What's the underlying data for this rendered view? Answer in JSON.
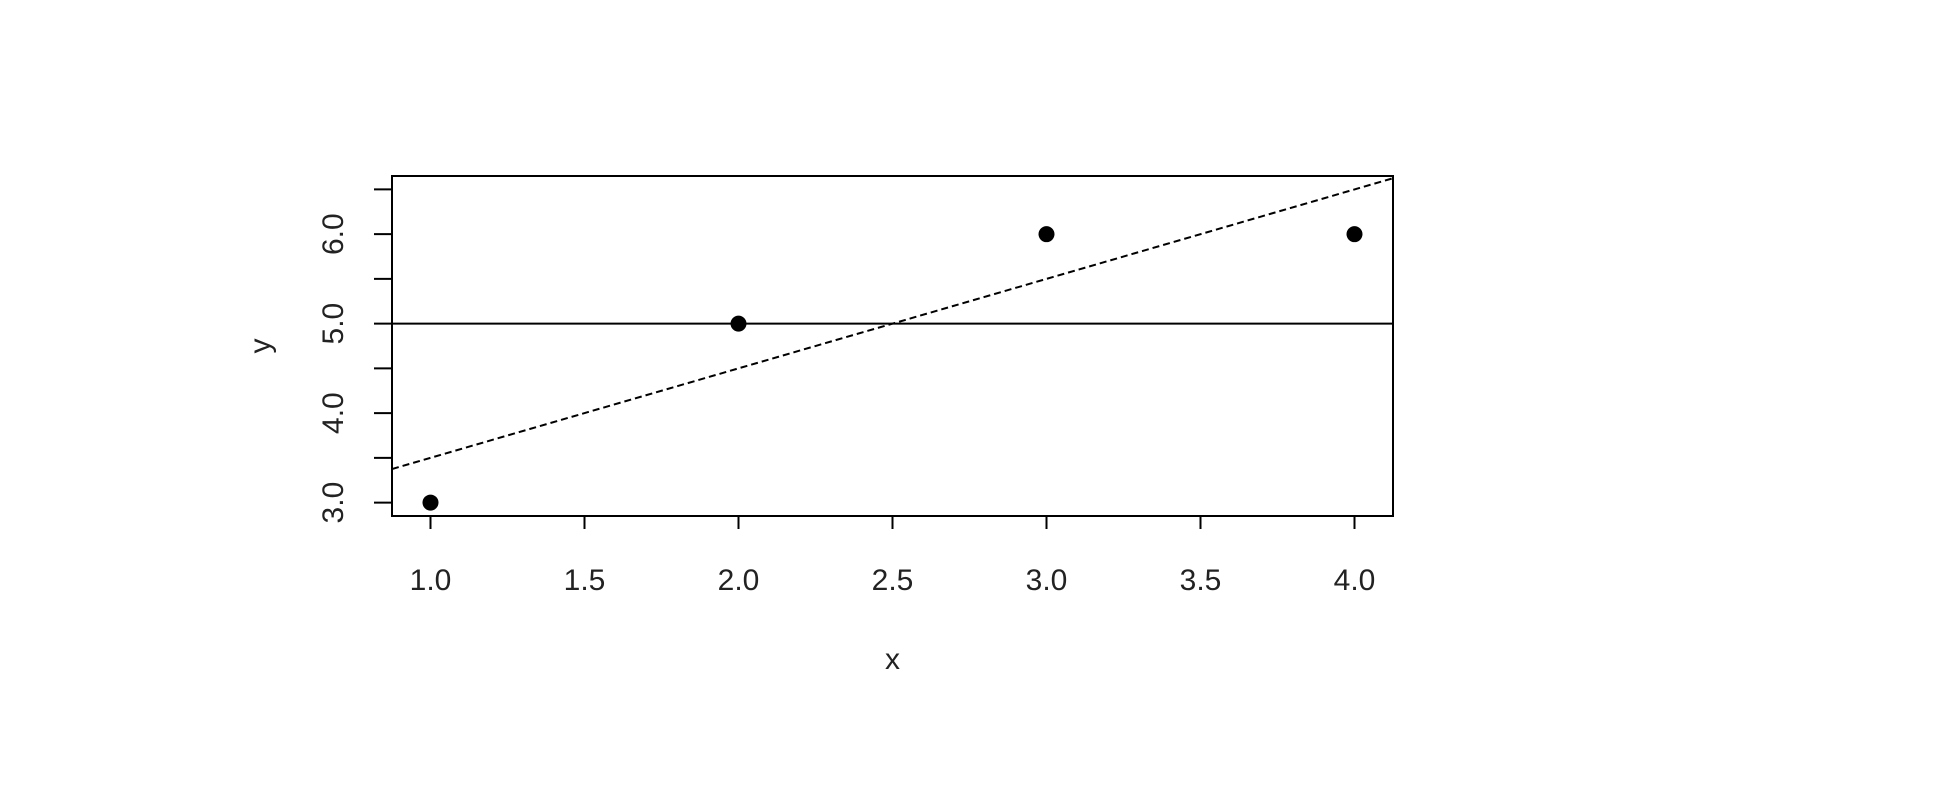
{
  "chart_data": {
    "type": "scatter",
    "title": "",
    "xlabel": "x",
    "ylabel": "y",
    "xlim": [
      0.875,
      4.125
    ],
    "ylim": [
      2.85,
      6.65
    ],
    "x_ticks": [
      1.0,
      1.5,
      2.0,
      2.5,
      3.0,
      3.5,
      4.0
    ],
    "x_tick_labels": [
      "1.0",
      "1.5",
      "2.0",
      "2.5",
      "3.0",
      "3.5",
      "4.0"
    ],
    "y_ticks_major": [
      3.0,
      4.0,
      5.0,
      6.0
    ],
    "y_tick_labels": [
      "3.0",
      "4.0",
      "5.0",
      "6.0"
    ],
    "y_ticks_minor": [
      3.5,
      4.5,
      5.5,
      6.5
    ],
    "grid": false,
    "points": {
      "x": [
        1,
        2,
        3,
        4
      ],
      "y": [
        3,
        5,
        6,
        6
      ],
      "color": "#000000"
    },
    "lines": [
      {
        "kind": "horizontal",
        "y": 5.0,
        "style": "solid",
        "color": "#000000"
      },
      {
        "kind": "abline",
        "intercept": 2.5,
        "slope": 1.0,
        "style": "dashed",
        "color": "#000000"
      }
    ]
  }
}
